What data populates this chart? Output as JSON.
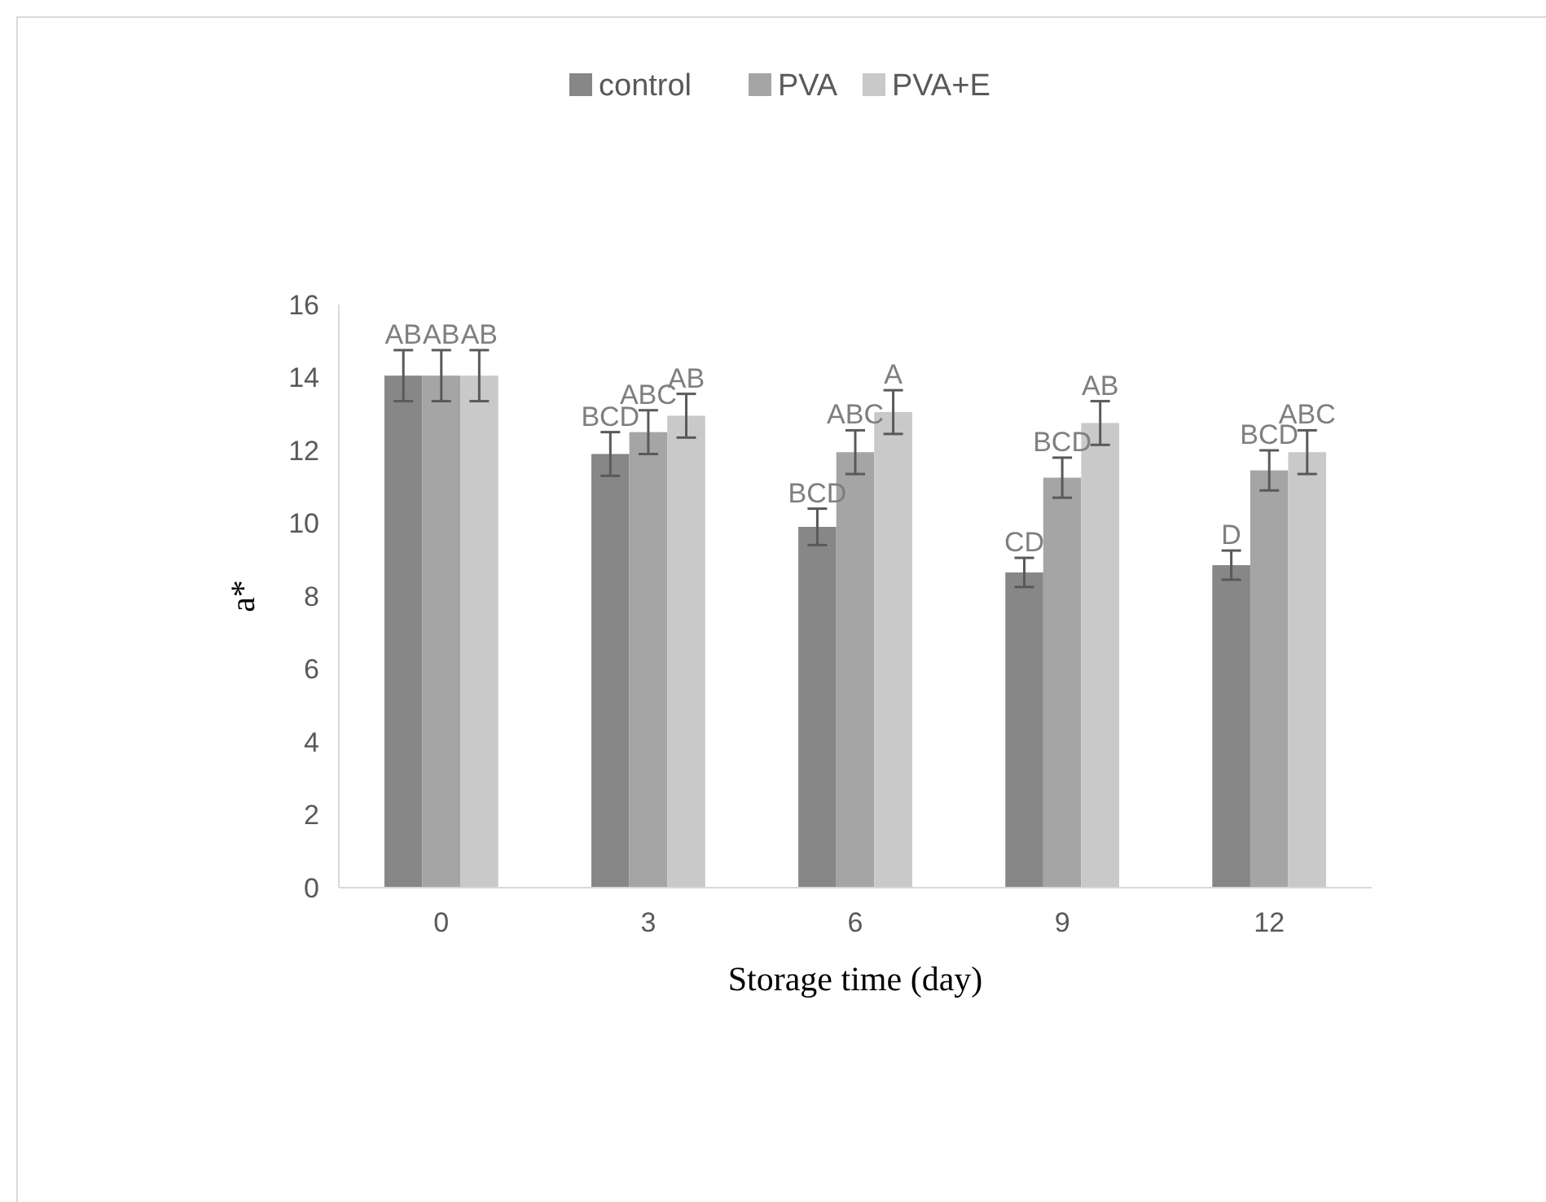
{
  "chart_data": {
    "type": "bar",
    "xlabel": "Storage time (day)",
    "ylabel": "a*",
    "categories": [
      "0",
      "3",
      "6",
      "9",
      "12"
    ],
    "series": [
      {
        "name": "control",
        "color": "#878787",
        "values": [
          14.05,
          11.9,
          9.9,
          8.65,
          8.85
        ],
        "errors": [
          0.7,
          0.6,
          0.5,
          0.4,
          0.4
        ],
        "value_labels": [
          "AB",
          "BCD",
          "BCD",
          "CD",
          "D"
        ]
      },
      {
        "name": "PVA",
        "color": "#a5a5a5",
        "values": [
          14.05,
          12.5,
          11.95,
          11.25,
          11.45
        ],
        "errors": [
          0.7,
          0.6,
          0.6,
          0.55,
          0.55
        ],
        "value_labels": [
          "AB",
          "ABC",
          "ABC",
          "BCD",
          "BCD"
        ]
      },
      {
        "name": "PVA+E",
        "color": "#c9c9c9",
        "values": [
          14.05,
          12.95,
          13.05,
          12.75,
          11.95
        ],
        "errors": [
          0.7,
          0.6,
          0.6,
          0.6,
          0.6
        ],
        "value_labels": [
          "AB",
          "AB",
          "A",
          "AB",
          "ABC"
        ]
      }
    ],
    "ylim": [
      0,
      16
    ],
    "yticks": [
      0,
      2,
      4,
      6,
      8,
      10,
      12,
      14,
      16
    ],
    "grid": false,
    "legend": "top"
  }
}
